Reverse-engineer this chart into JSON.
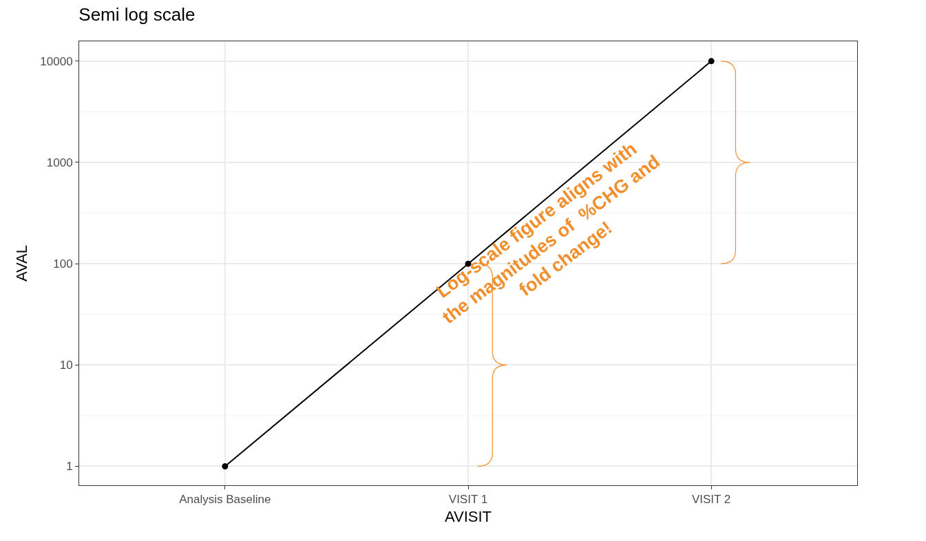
{
  "chart_data": {
    "type": "line",
    "title": "Semi log scale",
    "xlabel": "AVISIT",
    "ylabel": "AVAL",
    "categories": [
      "Analysis Baseline",
      "VISIT 1",
      "VISIT 2"
    ],
    "series": [
      {
        "color": "#000000",
        "values": [
          1,
          100,
          10000
        ]
      }
    ],
    "log": "y",
    "ylim": [
      0.65,
      15700
    ],
    "yticks": [
      1,
      10,
      100,
      1000,
      10000
    ],
    "grid": true,
    "legend": false,
    "marker": "circle",
    "line_style": "solid",
    "annotations": [
      "Log-scale figure aligns with\nthe magnitudes of  %CHG and\nfold change!"
    ]
  }
}
